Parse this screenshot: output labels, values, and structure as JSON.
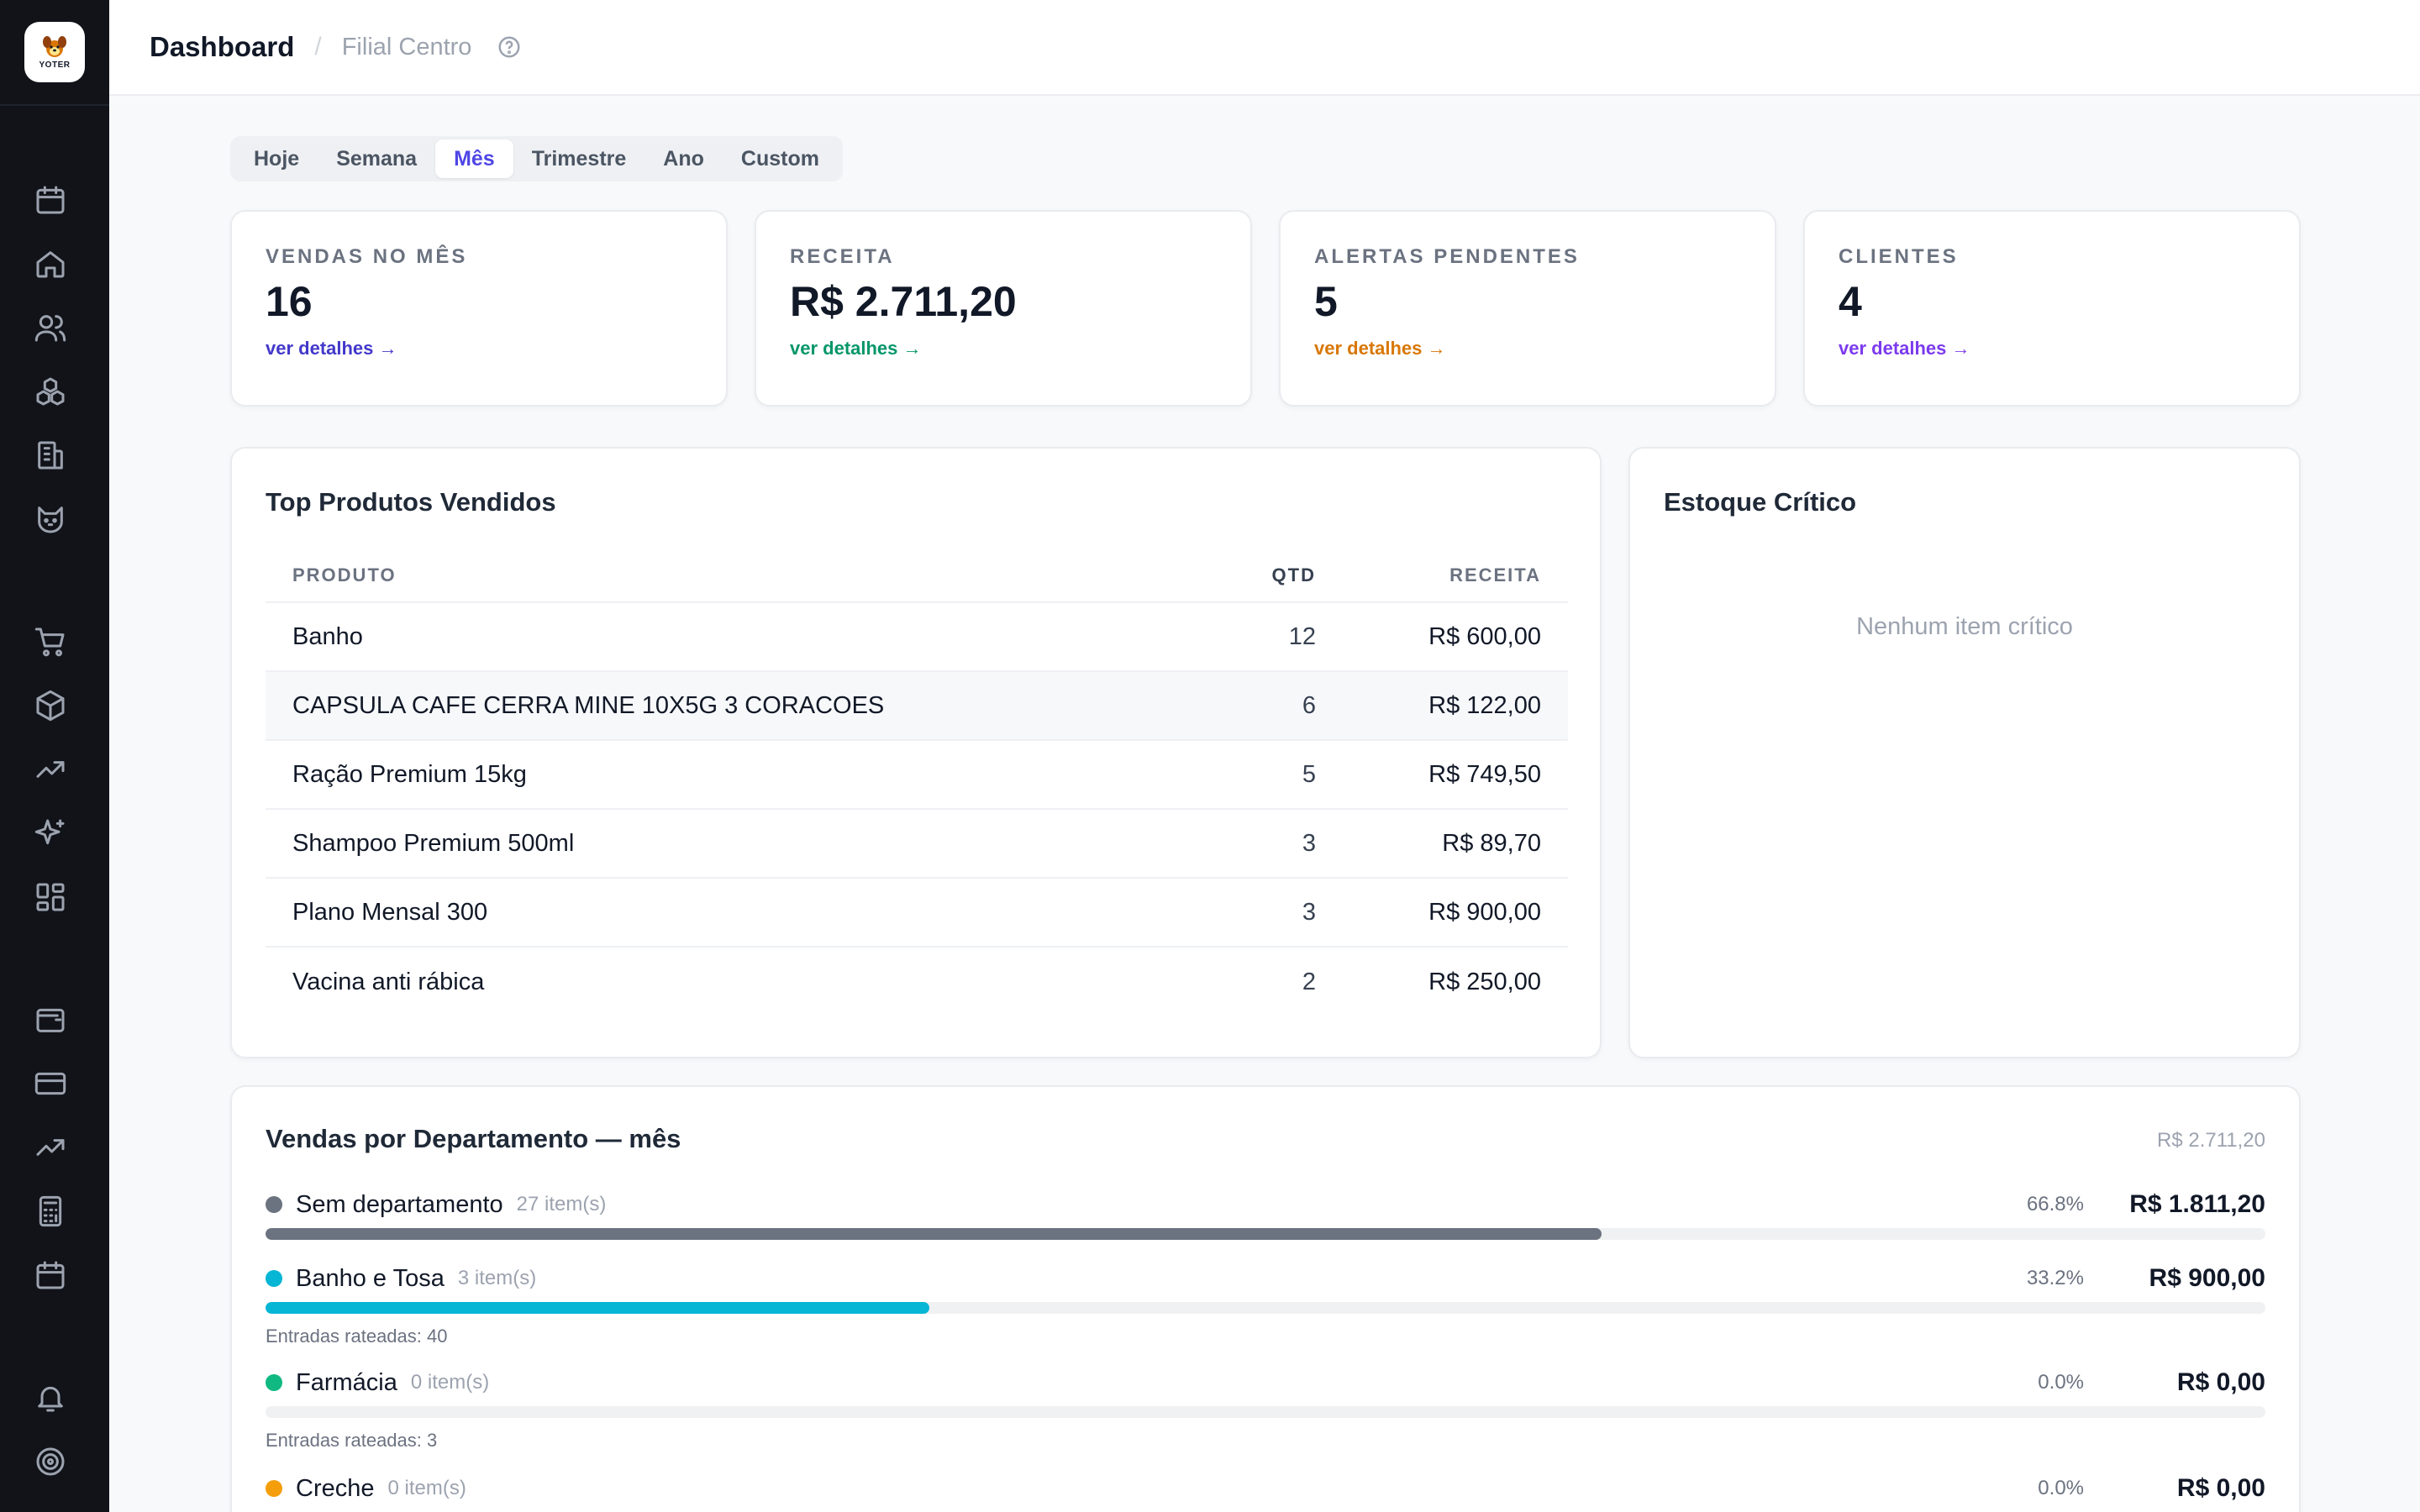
{
  "brand": {
    "logo_text": "YOTER"
  },
  "header": {
    "title": "Dashboard",
    "separator": "/",
    "branch": "Filial Centro"
  },
  "periods": {
    "tabs": [
      "Hoje",
      "Semana",
      "Mês",
      "Trimestre",
      "Ano",
      "Custom"
    ],
    "active": "Mês"
  },
  "stats": [
    {
      "label": "VENDAS NO MÊS",
      "value": "16",
      "link": "ver detalhes →",
      "color": "#4338ca"
    },
    {
      "label": "RECEITA",
      "value": "R$ 2.711,20",
      "link": "ver detalhes →",
      "color": "#059669"
    },
    {
      "label": "ALERTAS PENDENTES",
      "value": "5",
      "link": "ver detalhes →",
      "color": "#d97706"
    },
    {
      "label": "CLIENTES",
      "value": "4",
      "link": "ver detalhes →",
      "color": "#7c3aed"
    }
  ],
  "top_products": {
    "title": "Top Produtos Vendidos",
    "columns": [
      "PRODUTO",
      "QTD",
      "RECEITA"
    ],
    "rows": [
      {
        "product": "Banho",
        "qty": "12",
        "revenue": "R$ 600,00"
      },
      {
        "product": "CAPSULA CAFE CERRA MINE 10X5G 3 CORACOES",
        "qty": "6",
        "revenue": "R$ 122,00"
      },
      {
        "product": "Ração Premium 15kg",
        "qty": "5",
        "revenue": "R$ 749,50"
      },
      {
        "product": "Shampoo Premium 500ml",
        "qty": "3",
        "revenue": "R$ 89,70"
      },
      {
        "product": "Plano Mensal 300",
        "qty": "3",
        "revenue": "R$ 900,00"
      },
      {
        "product": "Vacina anti rábica",
        "qty": "2",
        "revenue": "R$ 250,00"
      }
    ]
  },
  "critical_stock": {
    "title": "Estoque Crítico",
    "empty": "Nenhum item crítico"
  },
  "departments": {
    "title": "Vendas por Departamento — mês",
    "total": "R$ 2.711,20",
    "items": [
      {
        "name": "Sem departamento",
        "count": "27 item(s)",
        "pct": "66.8%",
        "amount": "R$ 1.811,20",
        "share": 0.668,
        "color": "#6b7280",
        "sub": ""
      },
      {
        "name": "Banho e Tosa",
        "count": "3 item(s)",
        "pct": "33.2%",
        "amount": "R$ 900,00",
        "share": 0.332,
        "color": "#06b6d4",
        "sub": "Entradas rateadas: 40"
      },
      {
        "name": "Farmácia",
        "count": "0 item(s)",
        "pct": "0.0%",
        "amount": "R$ 0,00",
        "share": 0,
        "color": "#10b981",
        "sub": "Entradas rateadas: 3"
      },
      {
        "name": "Creche",
        "count": "0 item(s)",
        "pct": "0.0%",
        "amount": "R$ 0,00",
        "share": 0,
        "color": "#f59e0b",
        "sub": ""
      }
    ]
  },
  "sidebar_icons": [
    "calendar-icon",
    "home-icon",
    "users-icon",
    "boxes-icon",
    "building-icon",
    "cat-icon",
    "cart-icon",
    "package-icon",
    "trending-up-icon",
    "sparkles-icon",
    "grid-icon",
    "wallet-icon",
    "credit-card-icon",
    "trending-up-icon",
    "calculator-icon",
    "calendar-icon",
    "bell-icon",
    "target-icon"
  ]
}
